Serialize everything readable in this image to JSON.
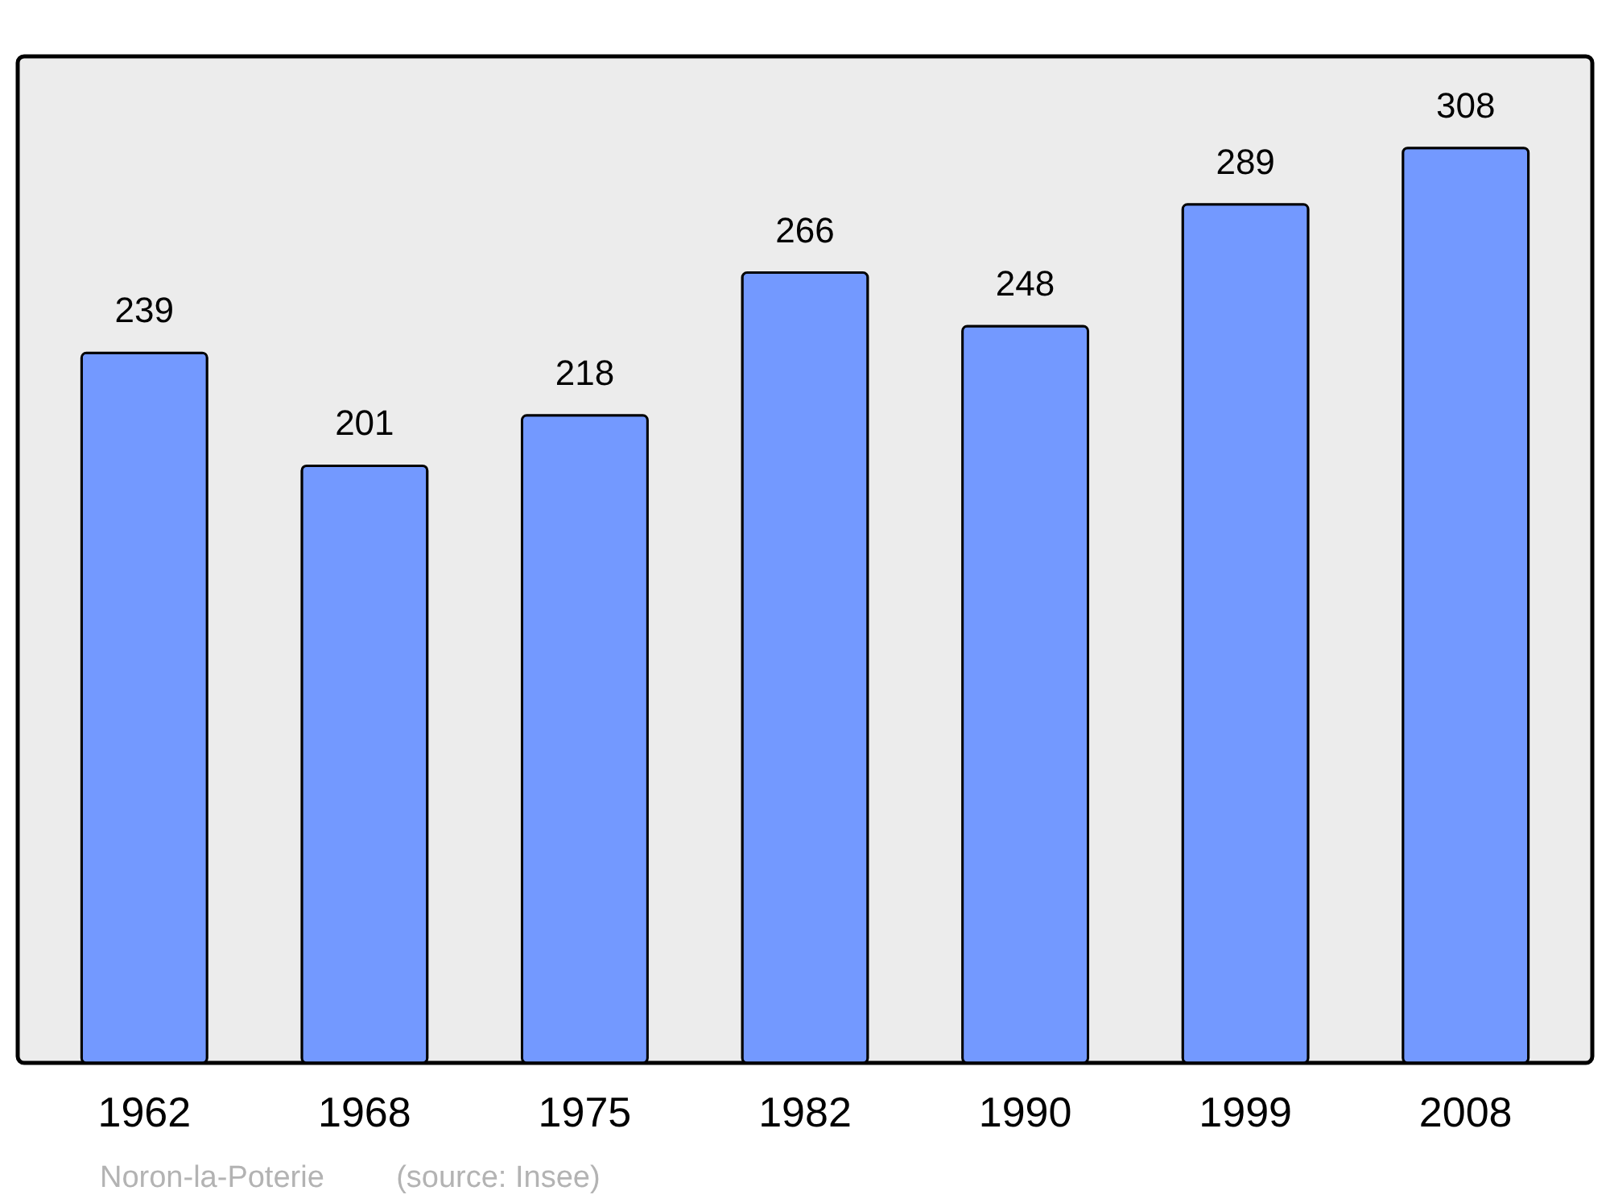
{
  "chart_data": {
    "type": "bar",
    "categories": [
      "1962",
      "1968",
      "1975",
      "1982",
      "1990",
      "1999",
      "2008"
    ],
    "values": [
      239,
      201,
      218,
      266,
      248,
      289,
      308
    ],
    "color": "#7399ff",
    "data_labels": true,
    "annotations": [
      "Noron-la-Poterie",
      "(source: Insee)"
    ]
  }
}
